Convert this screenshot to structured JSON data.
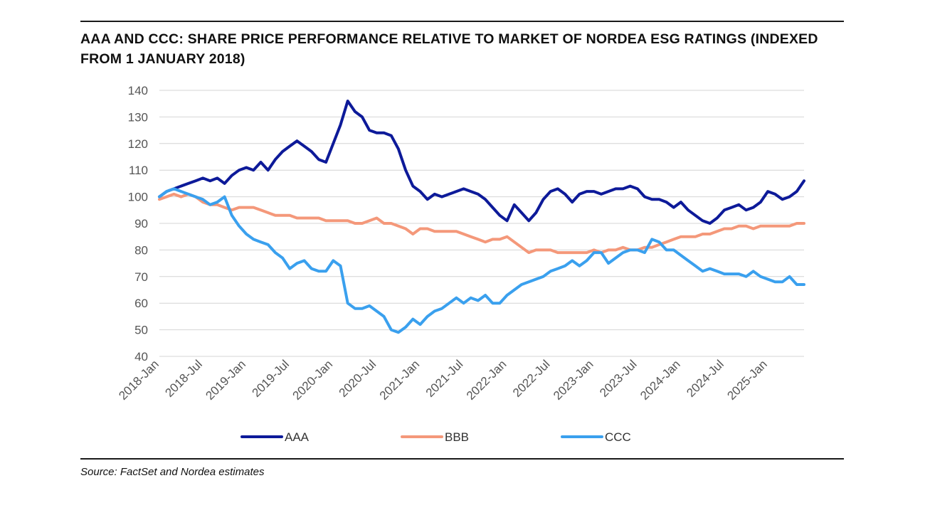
{
  "title": "AAA AND CCC: SHARE PRICE PERFORMANCE RELATIVE TO MARKET OF NORDEA ESG RATINGS (INDEXED FROM 1 JANUARY 2018)",
  "source": "Source: FactSet and Nordea estimates",
  "chart_data": {
    "type": "line",
    "x_tick_labels": [
      "2018-Jan",
      "2018-Jul",
      "2019-Jan",
      "2019-Jul",
      "2020-Jan",
      "2020-Jul",
      "2021-Jan",
      "2021-Jul",
      "2022-Jan",
      "2022-Jul",
      "2023-Jan",
      "2023-Jul",
      "2024-Jan",
      "2024-Jul",
      "2025-Jan"
    ],
    "x_range": [
      "2018-01",
      "2025-06"
    ],
    "ylim": [
      40,
      140
    ],
    "y_ticks": [
      40,
      50,
      60,
      70,
      80,
      90,
      100,
      110,
      120,
      130,
      140
    ],
    "grid": true,
    "legend_position": "bottom",
    "series": [
      {
        "name": "AAA",
        "color": "#0d1a99",
        "points": [
          [
            "2018-01",
            100
          ],
          [
            "2018-02",
            102
          ],
          [
            "2018-03",
            103
          ],
          [
            "2018-04",
            104
          ],
          [
            "2018-05",
            105
          ],
          [
            "2018-06",
            106
          ],
          [
            "2018-07",
            107
          ],
          [
            "2018-08",
            106
          ],
          [
            "2018-09",
            107
          ],
          [
            "2018-10",
            105
          ],
          [
            "2018-11",
            108
          ],
          [
            "2018-12",
            110
          ],
          [
            "2019-01",
            111
          ],
          [
            "2019-02",
            110
          ],
          [
            "2019-03",
            113
          ],
          [
            "2019-04",
            110
          ],
          [
            "2019-05",
            114
          ],
          [
            "2019-06",
            117
          ],
          [
            "2019-07",
            119
          ],
          [
            "2019-08",
            121
          ],
          [
            "2019-09",
            119
          ],
          [
            "2019-10",
            117
          ],
          [
            "2019-11",
            114
          ],
          [
            "2019-12",
            113
          ],
          [
            "2020-01",
            120
          ],
          [
            "2020-02",
            127
          ],
          [
            "2020-03",
            136
          ],
          [
            "2020-04",
            132
          ],
          [
            "2020-05",
            130
          ],
          [
            "2020-06",
            125
          ],
          [
            "2020-07",
            124
          ],
          [
            "2020-08",
            124
          ],
          [
            "2020-09",
            123
          ],
          [
            "2020-10",
            118
          ],
          [
            "2020-11",
            110
          ],
          [
            "2020-12",
            104
          ],
          [
            "2021-01",
            102
          ],
          [
            "2021-02",
            99
          ],
          [
            "2021-03",
            101
          ],
          [
            "2021-04",
            100
          ],
          [
            "2021-05",
            101
          ],
          [
            "2021-06",
            102
          ],
          [
            "2021-07",
            103
          ],
          [
            "2021-08",
            102
          ],
          [
            "2021-09",
            101
          ],
          [
            "2021-10",
            99
          ],
          [
            "2021-11",
            96
          ],
          [
            "2021-12",
            93
          ],
          [
            "2022-01",
            91
          ],
          [
            "2022-02",
            97
          ],
          [
            "2022-03",
            94
          ],
          [
            "2022-04",
            91
          ],
          [
            "2022-05",
            94
          ],
          [
            "2022-06",
            99
          ],
          [
            "2022-07",
            102
          ],
          [
            "2022-08",
            103
          ],
          [
            "2022-09",
            101
          ],
          [
            "2022-10",
            98
          ],
          [
            "2022-11",
            101
          ],
          [
            "2022-12",
            102
          ],
          [
            "2023-01",
            102
          ],
          [
            "2023-02",
            101
          ],
          [
            "2023-03",
            102
          ],
          [
            "2023-04",
            103
          ],
          [
            "2023-05",
            103
          ],
          [
            "2023-06",
            104
          ],
          [
            "2023-07",
            103
          ],
          [
            "2023-08",
            100
          ],
          [
            "2023-09",
            99
          ],
          [
            "2023-10",
            99
          ],
          [
            "2023-11",
            98
          ],
          [
            "2023-12",
            96
          ],
          [
            "2024-01",
            98
          ],
          [
            "2024-02",
            95
          ],
          [
            "2024-03",
            93
          ],
          [
            "2024-04",
            91
          ],
          [
            "2024-05",
            90
          ],
          [
            "2024-06",
            92
          ],
          [
            "2024-07",
            95
          ],
          [
            "2024-08",
            96
          ],
          [
            "2024-09",
            97
          ],
          [
            "2024-10",
            95
          ],
          [
            "2024-11",
            96
          ],
          [
            "2024-12",
            98
          ],
          [
            "2025-01",
            102
          ],
          [
            "2025-02",
            101
          ],
          [
            "2025-03",
            99
          ],
          [
            "2025-04",
            100
          ],
          [
            "2025-05",
            102
          ],
          [
            "2025-06",
            106
          ]
        ]
      },
      {
        "name": "BBB",
        "color": "#f4987a",
        "points": [
          [
            "2018-01",
            99
          ],
          [
            "2018-02",
            100
          ],
          [
            "2018-03",
            101
          ],
          [
            "2018-04",
            100
          ],
          [
            "2018-05",
            101
          ],
          [
            "2018-06",
            100
          ],
          [
            "2018-07",
            98
          ],
          [
            "2018-08",
            97
          ],
          [
            "2018-09",
            97
          ],
          [
            "2018-10",
            96
          ],
          [
            "2018-11",
            95
          ],
          [
            "2018-12",
            96
          ],
          [
            "2019-01",
            96
          ],
          [
            "2019-02",
            96
          ],
          [
            "2019-03",
            95
          ],
          [
            "2019-04",
            94
          ],
          [
            "2019-05",
            93
          ],
          [
            "2019-06",
            93
          ],
          [
            "2019-07",
            93
          ],
          [
            "2019-08",
            92
          ],
          [
            "2019-09",
            92
          ],
          [
            "2019-10",
            92
          ],
          [
            "2019-11",
            92
          ],
          [
            "2019-12",
            91
          ],
          [
            "2020-01",
            91
          ],
          [
            "2020-02",
            91
          ],
          [
            "2020-03",
            91
          ],
          [
            "2020-04",
            90
          ],
          [
            "2020-05",
            90
          ],
          [
            "2020-06",
            91
          ],
          [
            "2020-07",
            92
          ],
          [
            "2020-08",
            90
          ],
          [
            "2020-09",
            90
          ],
          [
            "2020-10",
            89
          ],
          [
            "2020-11",
            88
          ],
          [
            "2020-12",
            86
          ],
          [
            "2021-01",
            88
          ],
          [
            "2021-02",
            88
          ],
          [
            "2021-03",
            87
          ],
          [
            "2021-04",
            87
          ],
          [
            "2021-05",
            87
          ],
          [
            "2021-06",
            87
          ],
          [
            "2021-07",
            86
          ],
          [
            "2021-08",
            85
          ],
          [
            "2021-09",
            84
          ],
          [
            "2021-10",
            83
          ],
          [
            "2021-11",
            84
          ],
          [
            "2021-12",
            84
          ],
          [
            "2022-01",
            85
          ],
          [
            "2022-02",
            83
          ],
          [
            "2022-03",
            81
          ],
          [
            "2022-04",
            79
          ],
          [
            "2022-05",
            80
          ],
          [
            "2022-06",
            80
          ],
          [
            "2022-07",
            80
          ],
          [
            "2022-08",
            79
          ],
          [
            "2022-09",
            79
          ],
          [
            "2022-10",
            79
          ],
          [
            "2022-11",
            79
          ],
          [
            "2022-12",
            79
          ],
          [
            "2023-01",
            80
          ],
          [
            "2023-02",
            79
          ],
          [
            "2023-03",
            80
          ],
          [
            "2023-04",
            80
          ],
          [
            "2023-05",
            81
          ],
          [
            "2023-06",
            80
          ],
          [
            "2023-07",
            80
          ],
          [
            "2023-08",
            81
          ],
          [
            "2023-09",
            81
          ],
          [
            "2023-10",
            82
          ],
          [
            "2023-11",
            83
          ],
          [
            "2023-12",
            84
          ],
          [
            "2024-01",
            85
          ],
          [
            "2024-02",
            85
          ],
          [
            "2024-03",
            85
          ],
          [
            "2024-04",
            86
          ],
          [
            "2024-05",
            86
          ],
          [
            "2024-06",
            87
          ],
          [
            "2024-07",
            88
          ],
          [
            "2024-08",
            88
          ],
          [
            "2024-09",
            89
          ],
          [
            "2024-10",
            89
          ],
          [
            "2024-11",
            88
          ],
          [
            "2024-12",
            89
          ],
          [
            "2025-01",
            89
          ],
          [
            "2025-02",
            89
          ],
          [
            "2025-03",
            89
          ],
          [
            "2025-04",
            89
          ],
          [
            "2025-05",
            90
          ],
          [
            "2025-06",
            90
          ]
        ]
      },
      {
        "name": "CCC",
        "color": "#3aa0ee",
        "points": [
          [
            "2018-01",
            100
          ],
          [
            "2018-02",
            102
          ],
          [
            "2018-03",
            103
          ],
          [
            "2018-04",
            102
          ],
          [
            "2018-05",
            101
          ],
          [
            "2018-06",
            100
          ],
          [
            "2018-07",
            99
          ],
          [
            "2018-08",
            97
          ],
          [
            "2018-09",
            98
          ],
          [
            "2018-10",
            100
          ],
          [
            "2018-11",
            93
          ],
          [
            "2018-12",
            89
          ],
          [
            "2019-01",
            86
          ],
          [
            "2019-02",
            84
          ],
          [
            "2019-03",
            83
          ],
          [
            "2019-04",
            82
          ],
          [
            "2019-05",
            79
          ],
          [
            "2019-06",
            77
          ],
          [
            "2019-07",
            73
          ],
          [
            "2019-08",
            75
          ],
          [
            "2019-09",
            76
          ],
          [
            "2019-10",
            73
          ],
          [
            "2019-11",
            72
          ],
          [
            "2019-12",
            72
          ],
          [
            "2020-01",
            76
          ],
          [
            "2020-02",
            74
          ],
          [
            "2020-03",
            60
          ],
          [
            "2020-04",
            58
          ],
          [
            "2020-05",
            58
          ],
          [
            "2020-06",
            59
          ],
          [
            "2020-07",
            57
          ],
          [
            "2020-08",
            55
          ],
          [
            "2020-09",
            50
          ],
          [
            "2020-10",
            49
          ],
          [
            "2020-11",
            51
          ],
          [
            "2020-12",
            54
          ],
          [
            "2021-01",
            52
          ],
          [
            "2021-02",
            55
          ],
          [
            "2021-03",
            57
          ],
          [
            "2021-04",
            58
          ],
          [
            "2021-05",
            60
          ],
          [
            "2021-06",
            62
          ],
          [
            "2021-07",
            60
          ],
          [
            "2021-08",
            62
          ],
          [
            "2021-09",
            61
          ],
          [
            "2021-10",
            63
          ],
          [
            "2021-11",
            60
          ],
          [
            "2021-12",
            60
          ],
          [
            "2022-01",
            63
          ],
          [
            "2022-02",
            65
          ],
          [
            "2022-03",
            67
          ],
          [
            "2022-04",
            68
          ],
          [
            "2022-05",
            69
          ],
          [
            "2022-06",
            70
          ],
          [
            "2022-07",
            72
          ],
          [
            "2022-08",
            73
          ],
          [
            "2022-09",
            74
          ],
          [
            "2022-10",
            76
          ],
          [
            "2022-11",
            74
          ],
          [
            "2022-12",
            76
          ],
          [
            "2023-01",
            79
          ],
          [
            "2023-02",
            79
          ],
          [
            "2023-03",
            75
          ],
          [
            "2023-04",
            77
          ],
          [
            "2023-05",
            79
          ],
          [
            "2023-06",
            80
          ],
          [
            "2023-07",
            80
          ],
          [
            "2023-08",
            79
          ],
          [
            "2023-09",
            84
          ],
          [
            "2023-10",
            83
          ],
          [
            "2023-11",
            80
          ],
          [
            "2023-12",
            80
          ],
          [
            "2024-01",
            78
          ],
          [
            "2024-02",
            76
          ],
          [
            "2024-03",
            74
          ],
          [
            "2024-04",
            72
          ],
          [
            "2024-05",
            73
          ],
          [
            "2024-06",
            72
          ],
          [
            "2024-07",
            71
          ],
          [
            "2024-08",
            71
          ],
          [
            "2024-09",
            71
          ],
          [
            "2024-10",
            70
          ],
          [
            "2024-11",
            72
          ],
          [
            "2024-12",
            70
          ],
          [
            "2025-01",
            69
          ],
          [
            "2025-02",
            68
          ],
          [
            "2025-03",
            68
          ],
          [
            "2025-04",
            70
          ],
          [
            "2025-05",
            67
          ],
          [
            "2025-06",
            67
          ]
        ]
      }
    ]
  }
}
